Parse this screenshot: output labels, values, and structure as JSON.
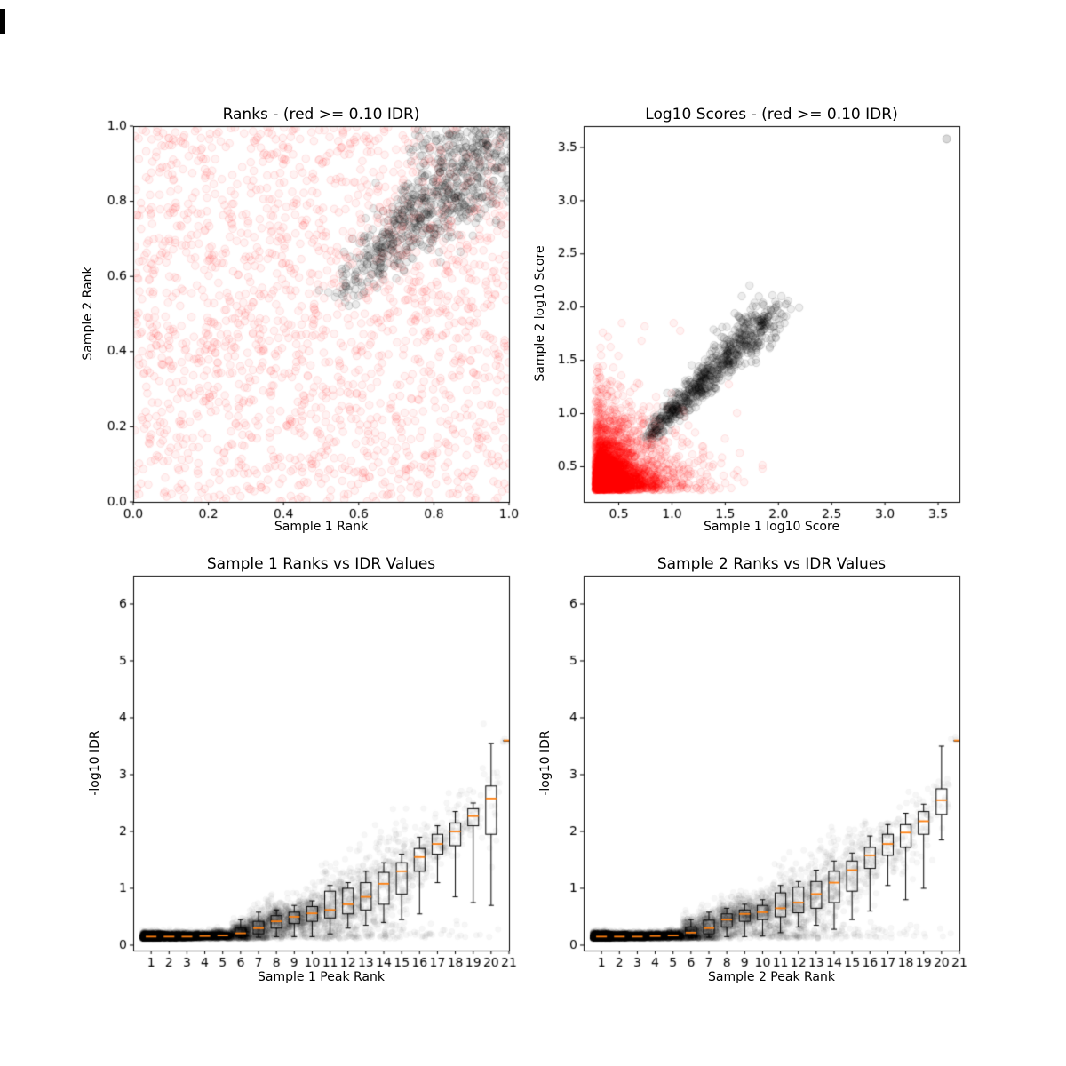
{
  "figure": {
    "background": "#ffffff"
  },
  "chart_data": [
    {
      "type": "scatter",
      "title": "Ranks - (red >= 0.10 IDR)",
      "xlabel": "Sample 1 Rank",
      "ylabel": "Sample 2 Rank",
      "xlim": [
        0,
        1
      ],
      "ylim": [
        0,
        1
      ],
      "grid": false,
      "legend": "none",
      "xticks": {
        "values": [
          0,
          0.2,
          0.4,
          0.6,
          0.8,
          1.0
        ],
        "labels": [
          "0.0",
          "0.2",
          "0.4",
          "0.6",
          "0.8",
          "1.0"
        ]
      },
      "yticks": {
        "values": [
          0,
          0.2,
          0.4,
          0.6,
          0.8,
          1.0
        ],
        "labels": [
          "0.0",
          "0.2",
          "0.4",
          "0.6",
          "0.8",
          "1.0"
        ]
      },
      "series": [
        {
          "name": "peaks with IDR >= 0.10",
          "color": "#ff0000",
          "fill_alpha": 0.05,
          "edge_alpha": 0.1,
          "marker_radius": 4.3,
          "gen": "uniform2d",
          "n": 1800,
          "seed": 101,
          "summary": "roughly uniform over [0,1] x [0,1]"
        },
        {
          "name": "peaks with IDR < 0.10",
          "color": "#000000",
          "fill_alpha": 0.08,
          "edge_alpha": 0.14,
          "marker_radius": 4.3,
          "gen": "diag",
          "n": 900,
          "seed": 102,
          "t0": 0.54,
          "t1": 1.0,
          "pow": 0.6,
          "sd0": 0.025,
          "sd1": 0.1,
          "summary": "diagonal band from (0.54,0.54) to (1.0,1.0), densest near top-right"
        }
      ]
    },
    {
      "type": "scatter",
      "title": "Log10 Scores - (red >= 0.10 IDR)",
      "xlabel": "Sample 1 log10 Score",
      "ylabel": "Sample 2 log10 Score",
      "xlim": [
        0.17,
        3.7
      ],
      "ylim": [
        0.17,
        3.7
      ],
      "grid": false,
      "legend": "none",
      "xticks": {
        "values": [
          0.5,
          1.0,
          1.5,
          2.0,
          2.5,
          3.0,
          3.5
        ],
        "labels": [
          "0.5",
          "1.0",
          "1.5",
          "2.0",
          "2.5",
          "3.0",
          "3.5"
        ]
      },
      "yticks": {
        "values": [
          0.5,
          1.0,
          1.5,
          2.0,
          2.5,
          3.0,
          3.5
        ],
        "labels": [
          "0.5",
          "1.0",
          "1.5",
          "2.0",
          "2.5",
          "3.0",
          "3.5"
        ]
      },
      "series": [
        {
          "name": "peaks with IDR >= 0.10",
          "color": "#ff0000",
          "fill_alpha": 0.05,
          "edge_alpha": 0.1,
          "marker_radius": 4.2,
          "gen": "exp2d",
          "n": 3200,
          "seed": 201,
          "base": 0.28,
          "mean": 0.22,
          "max": 1.85,
          "summary": "dense cluster near (0.3-0.7, 0.3-0.7) decaying to ~1.8"
        },
        {
          "name": "peaks with IDR < 0.10",
          "color": "#000000",
          "fill_alpha": 0.07,
          "edge_alpha": 0.13,
          "marker_radius": 4.2,
          "gen": "diag",
          "n": 780,
          "seed": 202,
          "t0": 0.78,
          "t1": 1.95,
          "pow": 0.85,
          "sd0": 0.045,
          "sd1": 0.1,
          "summary": "diagonal band from (0.78,0.78) to (1.95,1.95)"
        },
        {
          "name": "high-score outlier",
          "color": "#000000",
          "fill_alpha": 0.15,
          "edge_alpha": 0.2,
          "marker_radius": 4.5,
          "gen": "points",
          "pts": [
            [
              3.58,
              3.58
            ]
          ]
        }
      ]
    },
    {
      "type": "box",
      "title": "Sample 1 Ranks vs IDR Values",
      "xlabel": "Sample 1 Peak Rank",
      "ylabel": "-log10 IDR",
      "xlim": [
        0,
        21
      ],
      "ylim": [
        -0.094,
        6.5
      ],
      "grid": false,
      "legend": "none",
      "box_width": 0.6,
      "median_color": "#ff7f0e",
      "xticks": {
        "values": [
          1,
          2,
          3,
          4,
          5,
          6,
          7,
          8,
          9,
          10,
          11,
          12,
          13,
          14,
          15,
          16,
          17,
          18,
          19,
          20,
          21
        ],
        "labels": [
          "1",
          "2",
          "3",
          "4",
          "5",
          "6",
          "7",
          "8",
          "9",
          "10",
          "11",
          "12",
          "13",
          "14",
          "15",
          "16",
          "17",
          "18",
          "19",
          "20",
          "21"
        ]
      },
      "yticks": {
        "values": [
          0,
          1,
          2,
          3,
          4,
          5,
          6
        ],
        "labels": [
          "0",
          "1",
          "2",
          "3",
          "4",
          "5",
          "6"
        ]
      },
      "ranks": [
        1,
        2,
        3,
        4,
        5,
        6,
        7,
        8,
        9,
        10,
        11,
        12,
        13,
        14,
        15,
        16,
        17,
        18,
        19,
        20,
        21
      ],
      "stats": {
        "median": [
          0.15,
          0.15,
          0.15,
          0.16,
          0.17,
          0.21,
          0.3,
          0.42,
          0.5,
          0.56,
          0.62,
          0.72,
          0.85,
          1.08,
          1.3,
          1.55,
          1.78,
          2.0,
          2.27,
          2.58,
          3.6
        ],
        "q1": [
          0.13,
          0.13,
          0.13,
          0.14,
          0.14,
          0.16,
          0.2,
          0.3,
          0.38,
          0.42,
          0.48,
          0.55,
          0.62,
          0.72,
          0.9,
          1.3,
          1.6,
          1.75,
          2.1,
          1.95,
          3.6
        ],
        "q3": [
          0.17,
          0.17,
          0.17,
          0.18,
          0.2,
          0.3,
          0.42,
          0.52,
          0.58,
          0.68,
          0.95,
          1.0,
          1.1,
          1.28,
          1.45,
          1.7,
          1.95,
          2.15,
          2.4,
          2.8,
          3.6
        ],
        "whislo": [
          0.12,
          0.12,
          0.12,
          0.12,
          0.13,
          0.13,
          0.14,
          0.15,
          0.15,
          0.15,
          0.2,
          0.3,
          0.35,
          0.4,
          0.45,
          0.55,
          1.1,
          0.85,
          0.75,
          0.7,
          3.6
        ],
        "whishi": [
          0.18,
          0.18,
          0.18,
          0.19,
          0.22,
          0.45,
          0.58,
          0.62,
          0.7,
          0.78,
          1.05,
          1.1,
          1.3,
          1.45,
          1.6,
          1.9,
          2.1,
          2.35,
          2.5,
          3.55,
          3.6
        ]
      },
      "cloud": {
        "seed": 301,
        "color": "#000000",
        "alpha": 0.035,
        "radius": 3.3,
        "low_outlier_frac": 0.12,
        "counts": [
          2600,
          1400,
          900,
          650,
          500,
          400,
          330,
          280,
          240,
          210,
          185,
          165,
          145,
          125,
          105,
          85,
          65,
          50,
          35,
          20,
          6
        ]
      }
    },
    {
      "type": "box",
      "title": "Sample 2 Ranks vs IDR Values",
      "xlabel": "Sample 2 Peak Rank",
      "ylabel": "-log10 IDR",
      "xlim": [
        0,
        21
      ],
      "ylim": [
        -0.094,
        6.5
      ],
      "grid": false,
      "legend": "none",
      "box_width": 0.6,
      "median_color": "#ff7f0e",
      "xticks": {
        "values": [
          1,
          2,
          3,
          4,
          5,
          6,
          7,
          8,
          9,
          10,
          11,
          12,
          13,
          14,
          15,
          16,
          17,
          18,
          19,
          20,
          21
        ],
        "labels": [
          "1",
          "2",
          "3",
          "4",
          "5",
          "6",
          "7",
          "8",
          "9",
          "10",
          "11",
          "12",
          "13",
          "14",
          "15",
          "16",
          "17",
          "18",
          "19",
          "20",
          "21"
        ]
      },
      "yticks": {
        "values": [
          0,
          1,
          2,
          3,
          4,
          5,
          6
        ],
        "labels": [
          "0",
          "1",
          "2",
          "3",
          "4",
          "5",
          "6"
        ]
      },
      "ranks": [
        1,
        2,
        3,
        4,
        5,
        6,
        7,
        8,
        9,
        10,
        11,
        12,
        13,
        14,
        15,
        16,
        17,
        18,
        19,
        20,
        21
      ],
      "stats": {
        "median": [
          0.15,
          0.15,
          0.15,
          0.16,
          0.17,
          0.22,
          0.3,
          0.45,
          0.55,
          0.58,
          0.65,
          0.75,
          0.9,
          1.1,
          1.32,
          1.58,
          1.78,
          1.98,
          2.18,
          2.55,
          3.6
        ],
        "q1": [
          0.13,
          0.13,
          0.13,
          0.14,
          0.14,
          0.16,
          0.2,
          0.32,
          0.42,
          0.45,
          0.5,
          0.57,
          0.65,
          0.75,
          0.95,
          1.35,
          1.58,
          1.72,
          1.95,
          2.3,
          3.6
        ],
        "q3": [
          0.17,
          0.17,
          0.17,
          0.18,
          0.2,
          0.32,
          0.44,
          0.55,
          0.62,
          0.7,
          0.92,
          1.02,
          1.12,
          1.3,
          1.48,
          1.72,
          1.95,
          2.12,
          2.35,
          2.75,
          3.6
        ],
        "whislo": [
          0.12,
          0.12,
          0.12,
          0.12,
          0.13,
          0.13,
          0.14,
          0.15,
          0.15,
          0.16,
          0.22,
          0.32,
          0.35,
          0.28,
          0.45,
          0.6,
          1.05,
          0.8,
          1.0,
          1.85,
          3.6
        ],
        "whishi": [
          0.18,
          0.18,
          0.18,
          0.19,
          0.22,
          0.45,
          0.58,
          0.65,
          0.72,
          0.8,
          1.05,
          1.12,
          1.32,
          1.48,
          1.62,
          1.92,
          2.12,
          2.32,
          2.48,
          3.5,
          3.6
        ]
      },
      "cloud": {
        "seed": 401,
        "color": "#000000",
        "alpha": 0.035,
        "radius": 3.3,
        "low_outlier_frac": 0.12,
        "counts": [
          2600,
          1400,
          900,
          650,
          500,
          400,
          330,
          280,
          240,
          210,
          185,
          165,
          145,
          125,
          105,
          85,
          65,
          50,
          35,
          20,
          6
        ]
      }
    }
  ]
}
